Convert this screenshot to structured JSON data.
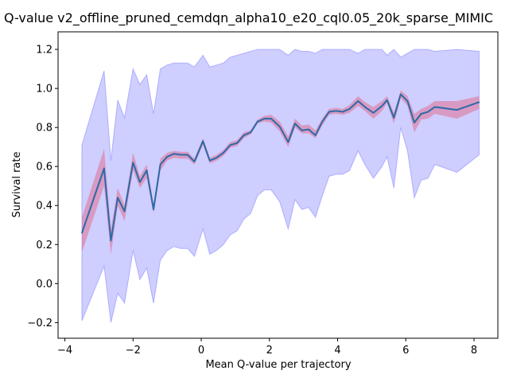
{
  "chart_data": {
    "type": "line",
    "title": "Q-value v2_offline_pruned_cemdqn_alpha10_e20_cql0.05_20k_sparse_MIMIC",
    "xlabel": "Mean Q-value per trajectory",
    "ylabel": "Survival rate",
    "xlim": [
      -4.2,
      8.7
    ],
    "ylim": [
      -0.28,
      1.29
    ],
    "xticks": [
      -4,
      -2,
      0,
      2,
      4,
      6,
      8
    ],
    "xtick_labels": [
      "−4",
      "−2",
      "0",
      "2",
      "4",
      "6",
      "8"
    ],
    "yticks": [
      -0.2,
      0.0,
      0.2,
      0.4,
      0.6,
      0.8,
      1.0,
      1.2
    ],
    "ytick_labels": [
      "−0.2",
      "0.0",
      "0.2",
      "0.4",
      "0.6",
      "0.8",
      "1.0",
      "1.2"
    ],
    "grid": false,
    "legend": "none",
    "colors": {
      "line": "#2a6aa8",
      "inner_band": "#e07090",
      "outer_band": "#8a8aff"
    },
    "x": [
      -3.5,
      -2.85,
      -2.65,
      -2.45,
      -2.25,
      -2.0,
      -1.8,
      -1.6,
      -1.4,
      -1.2,
      -1.0,
      -0.8,
      -0.6,
      -0.4,
      -0.2,
      0.05,
      0.25,
      0.45,
      0.65,
      0.85,
      1.05,
      1.25,
      1.45,
      1.65,
      1.85,
      2.05,
      2.3,
      2.55,
      2.75,
      2.95,
      3.15,
      3.35,
      3.55,
      3.75,
      3.95,
      4.15,
      4.35,
      4.6,
      4.8,
      5.05,
      5.3,
      5.45,
      5.65,
      5.85,
      6.05,
      6.25,
      6.45,
      6.65,
      6.85,
      7.5,
      8.15
    ],
    "y": [
      0.26,
      0.59,
      0.22,
      0.44,
      0.37,
      0.62,
      0.52,
      0.58,
      0.38,
      0.61,
      0.65,
      0.665,
      0.66,
      0.66,
      0.625,
      0.73,
      0.63,
      0.645,
      0.67,
      0.71,
      0.72,
      0.76,
      0.775,
      0.83,
      0.845,
      0.845,
      0.805,
      0.725,
      0.82,
      0.785,
      0.79,
      0.76,
      0.83,
      0.88,
      0.885,
      0.88,
      0.895,
      0.935,
      0.905,
      0.875,
      0.91,
      0.94,
      0.85,
      0.97,
      0.935,
      0.825,
      0.87,
      0.88,
      0.905,
      0.89,
      0.93
    ],
    "inner_lower": [
      0.16,
      0.5,
      0.15,
      0.4,
      0.32,
      0.58,
      0.49,
      0.54,
      0.36,
      0.58,
      0.63,
      0.645,
      0.64,
      0.64,
      0.61,
      0.71,
      0.615,
      0.63,
      0.655,
      0.695,
      0.705,
      0.745,
      0.765,
      0.82,
      0.83,
      0.825,
      0.78,
      0.7,
      0.8,
      0.77,
      0.77,
      0.745,
      0.81,
      0.865,
      0.87,
      0.865,
      0.875,
      0.91,
      0.885,
      0.845,
      0.885,
      0.925,
      0.82,
      0.95,
      0.91,
      0.775,
      0.84,
      0.845,
      0.87,
      0.845,
      0.895
    ],
    "inner_upper": [
      0.34,
      0.69,
      0.28,
      0.49,
      0.4,
      0.67,
      0.55,
      0.61,
      0.41,
      0.64,
      0.67,
      0.68,
      0.675,
      0.675,
      0.64,
      0.745,
      0.645,
      0.66,
      0.685,
      0.725,
      0.735,
      0.775,
      0.785,
      0.84,
      0.86,
      0.865,
      0.83,
      0.755,
      0.845,
      0.81,
      0.815,
      0.785,
      0.845,
      0.895,
      0.9,
      0.895,
      0.915,
      0.96,
      0.93,
      0.905,
      0.935,
      0.96,
      0.875,
      0.99,
      0.96,
      0.87,
      0.895,
      0.91,
      0.935,
      0.935,
      0.96
    ],
    "outer_lower": [
      -0.19,
      0.09,
      -0.2,
      -0.05,
      -0.1,
      0.17,
      0.02,
      0.08,
      -0.1,
      0.12,
      0.17,
      0.19,
      0.18,
      0.18,
      0.14,
      0.28,
      0.15,
      0.17,
      0.2,
      0.25,
      0.27,
      0.33,
      0.36,
      0.45,
      0.48,
      0.48,
      0.42,
      0.28,
      0.43,
      0.38,
      0.39,
      0.34,
      0.45,
      0.55,
      0.56,
      0.56,
      0.58,
      0.68,
      0.61,
      0.54,
      0.6,
      0.65,
      0.49,
      0.8,
      0.68,
      0.44,
      0.53,
      0.54,
      0.61,
      0.57,
      0.66
    ],
    "outer_upper": [
      0.71,
      1.09,
      0.63,
      0.94,
      0.85,
      1.1,
      1.02,
      1.07,
      0.87,
      1.1,
      1.12,
      1.13,
      1.13,
      1.13,
      1.11,
      1.17,
      1.11,
      1.12,
      1.13,
      1.16,
      1.17,
      1.18,
      1.19,
      1.2,
      1.2,
      1.2,
      1.2,
      1.17,
      1.2,
      1.19,
      1.19,
      1.18,
      1.2,
      1.2,
      1.2,
      1.2,
      1.2,
      1.18,
      1.2,
      1.2,
      1.2,
      1.17,
      1.2,
      1.16,
      1.18,
      1.2,
      1.2,
      1.2,
      1.19,
      1.2,
      1.19
    ]
  }
}
